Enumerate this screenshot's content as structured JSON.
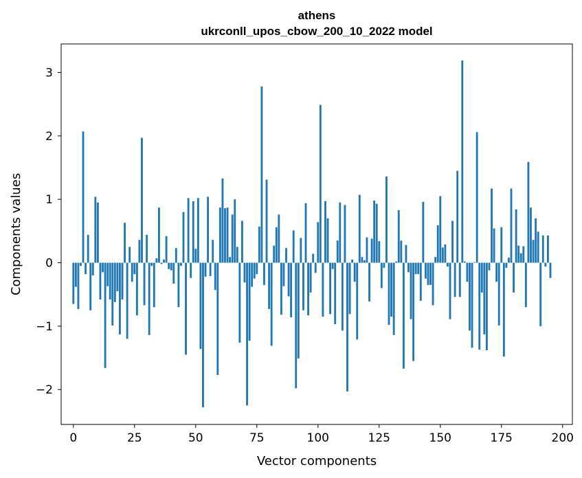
{
  "chart_data": {
    "type": "bar",
    "title_line1": "athens",
    "title_line2": "ukrconll_upos_cbow_200_10_2022 model",
    "xlabel": "Vector components",
    "ylabel": "Components values",
    "xlim": [
      -5,
      204
    ],
    "ylim": [
      -2.55,
      3.45
    ],
    "x_ticks": [
      0,
      25,
      50,
      75,
      100,
      125,
      150,
      175,
      200
    ],
    "y_ticks": [
      -2,
      -1,
      0,
      1,
      2,
      3
    ],
    "x_tick_labels": [
      "0",
      "25",
      "50",
      "75",
      "100",
      "125",
      "150",
      "175",
      "200"
    ],
    "y_tick_labels": [
      "−2",
      "−1",
      "0",
      "1",
      "2",
      "3"
    ],
    "bar_color": "#1f77b4",
    "values": [
      -0.65,
      -0.38,
      -0.73,
      -0.05,
      2.07,
      -0.18,
      0.44,
      -0.75,
      -0.2,
      1.04,
      0.95,
      -0.58,
      -0.15,
      -1.66,
      -0.37,
      -0.58,
      -0.99,
      -0.62,
      -0.45,
      -1.13,
      -0.58,
      0.63,
      -1.2,
      0.25,
      -0.3,
      -0.18,
      -0.83,
      0.36,
      1.97,
      -0.67,
      0.44,
      -1.14,
      -0.05,
      -0.7,
      0.07,
      0.87,
      -0.02,
      0.05,
      0.42,
      -0.1,
      -0.12,
      -0.33,
      0.23,
      -0.7,
      -0.05,
      0.8,
      -1.45,
      1.02,
      -0.24,
      0.97,
      0.22,
      1.02,
      -1.36,
      -2.28,
      -0.22,
      1.04,
      -0.21,
      0.36,
      -0.43,
      -1.77,
      0.87,
      1.33,
      0.86,
      0.87,
      0.09,
      0.76,
      1.0,
      0.25,
      -1.26,
      0.66,
      -0.31,
      -2.25,
      -1.23,
      -0.38,
      -0.25,
      -0.18,
      0.57,
      2.78,
      -0.35,
      1.31,
      -0.73,
      -1.31,
      0.27,
      0.56,
      0.76,
      -0.82,
      -0.37,
      0.23,
      -0.53,
      -0.86,
      0.51,
      -1.98,
      -1.51,
      0.39,
      -0.75,
      0.94,
      -0.83,
      -0.47,
      0.14,
      -0.16,
      0.64,
      2.49,
      -0.85,
      0.97,
      0.7,
      -0.81,
      -0.1,
      -0.97,
      0.35,
      0.95,
      -1.07,
      0.91,
      -2.03,
      -0.81,
      0.05,
      -0.3,
      -1.21,
      1.07,
      0.09,
      0.04,
      0.4,
      -0.61,
      0.38,
      0.98,
      0.93,
      0.34,
      -0.4,
      -0.08,
      1.36,
      -0.98,
      -0.85,
      -1.14,
      0.02,
      0.83,
      0.35,
      -1.67,
      0.28,
      -0.15,
      -0.89,
      -1.55,
      -0.18,
      -0.18,
      -0.6,
      0.96,
      -0.25,
      -0.35,
      -0.35,
      -0.67,
      0.09,
      0.59,
      1.05,
      0.24,
      0.29,
      -0.06,
      -0.89,
      0.66,
      -0.54,
      1.45,
      -0.54,
      3.19,
      0.02,
      -0.3,
      -1.07,
      -1.34,
      0.01,
      2.06,
      -1.37,
      -0.47,
      -1.13,
      -1.38,
      -0.12,
      1.17,
      0.54,
      -0.3,
      -0.99,
      0.56,
      -1.48,
      -0.08,
      0.08,
      1.17,
      -0.47,
      0.84,
      0.27,
      0.15,
      0.26,
      -0.7,
      1.59,
      0.87,
      0.36,
      0.7,
      0.49,
      -1.0,
      0.43,
      -0.06,
      0.43,
      -0.24
    ]
  }
}
